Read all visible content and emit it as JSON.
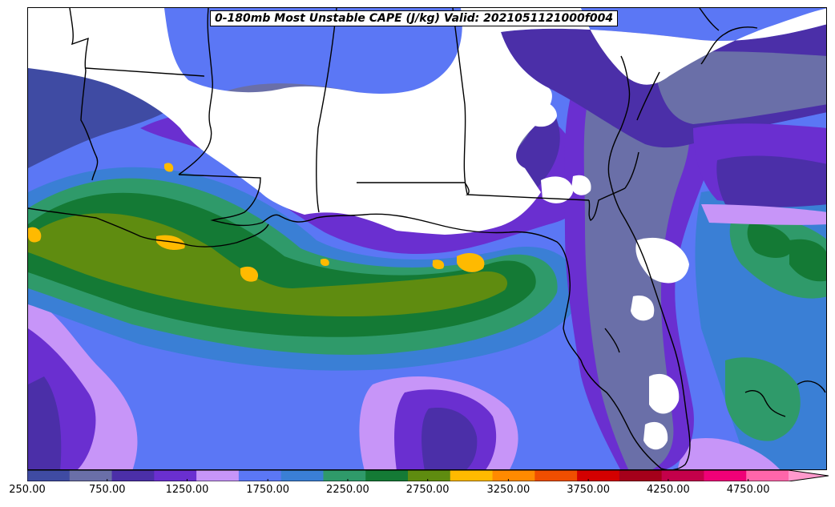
{
  "title": "0-180mb Most Unstable CAPE (J/kg) Valid: 2021051121000f004",
  "colorbar": {
    "colors": [
      "#3f4ba3",
      "#6a6fa8",
      "#4b2fa8",
      "#6a2fd0",
      "#c795f8",
      "#5b77f5",
      "#3a7fd5",
      "#2f9a6a",
      "#147a35",
      "#5f8c10",
      "#ffba00",
      "#ff8a00",
      "#f04e00",
      "#d40000",
      "#a5001a",
      "#c4004a",
      "#f00077",
      "#ff66aa",
      "#ff99cc"
    ],
    "ticks": [
      {
        "value": "250.00",
        "frac": 0.0
      },
      {
        "value": "750.00",
        "frac": 0.105
      },
      {
        "value": "1250.00",
        "frac": 0.21
      },
      {
        "value": "1750.00",
        "frac": 0.316
      },
      {
        "value": "2250.00",
        "frac": 0.421
      },
      {
        "value": "2750.00",
        "frac": 0.526
      },
      {
        "value": "3250.00",
        "frac": 0.632
      },
      {
        "value": "3750.00",
        "frac": 0.737
      },
      {
        "value": "4250.00",
        "frac": 0.842
      },
      {
        "value": "4750.00",
        "frac": 0.947
      }
    ]
  },
  "palette": {
    "low": "#3f4ba3",
    "lowgray": "#6a6fa8",
    "violet": "#4b2fa8",
    "purple": "#6a2fd0",
    "lilac": "#c795f8",
    "blue": "#5b77f5",
    "steel": "#3a7fd5",
    "teal": "#2f9a6a",
    "green": "#147a35",
    "olive": "#5f8c10",
    "gold": "#ffba00"
  }
}
